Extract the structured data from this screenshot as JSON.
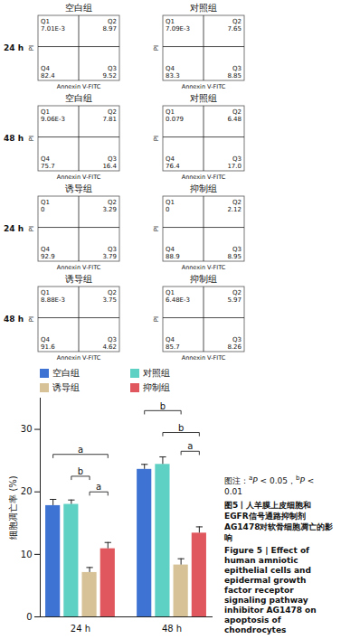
{
  "flow_cytometry": {
    "x_label": "Annexin V-FITC",
    "y_label": "PI",
    "rows": [
      {
        "label": "24 h",
        "panels": [
          {
            "title": "空白组",
            "quadrants": [
              {
                "name": "Q1",
                "value": "7.01E-3"
              },
              {
                "name": "Q2",
                "value": "8.97"
              },
              {
                "name": "Q3",
                "value": "9.52"
              },
              {
                "name": "Q4",
                "value": "82.4"
              }
            ]
          },
          {
            "title": "对照组",
            "quadrants": [
              {
                "name": "Q1",
                "value": "7.09E-3"
              },
              {
                "name": "Q2",
                "value": "7.65"
              },
              {
                "name": "Q3",
                "value": "8.85"
              },
              {
                "name": "Q4",
                "value": "83.3"
              }
            ]
          }
        ]
      },
      {
        "label": "48 h",
        "panels": [
          {
            "title": "空白组",
            "quadrants": [
              {
                "name": "Q1",
                "value": "9.06E-3"
              },
              {
                "name": "Q2",
                "value": "7.81"
              },
              {
                "name": "Q3",
                "value": "16.4"
              },
              {
                "name": "Q4",
                "value": "75.7"
              }
            ]
          },
          {
            "title": "对照组",
            "quadrants": [
              {
                "name": "Q1",
                "value": "0.079"
              },
              {
                "name": "Q2",
                "value": "6.48"
              },
              {
                "name": "Q3",
                "value": "17.0"
              },
              {
                "name": "Q4",
                "value": "76.4"
              }
            ]
          }
        ]
      },
      {
        "label": "24 h",
        "panels": [
          {
            "title": "诱导组",
            "quadrants": [
              {
                "name": "Q1",
                "value": "0"
              },
              {
                "name": "Q2",
                "value": "3.29"
              },
              {
                "name": "Q3",
                "value": "3.79"
              },
              {
                "name": "Q4",
                "value": "92.9"
              }
            ]
          },
          {
            "title": "抑制组",
            "quadrants": [
              {
                "name": "Q1",
                "value": "0"
              },
              {
                "name": "Q2",
                "value": "2.12"
              },
              {
                "name": "Q3",
                "value": "8.95"
              },
              {
                "name": "Q4",
                "value": "88.9"
              }
            ]
          }
        ]
      },
      {
        "label": "48 h",
        "panels": [
          {
            "title": "诱导组",
            "quadrants": [
              {
                "name": "Q1",
                "value": "8.88E-3"
              },
              {
                "name": "Q2",
                "value": "3.75"
              },
              {
                "name": "Q3",
                "value": "4.62"
              },
              {
                "name": "Q4",
                "value": "91.6"
              }
            ]
          },
          {
            "title": "抑制组",
            "quadrants": [
              {
                "name": "Q1",
                "value": "6.48E-3"
              },
              {
                "name": "Q2",
                "value": "5.97"
              },
              {
                "name": "Q3",
                "value": "8.26"
              },
              {
                "name": "Q4",
                "value": "85.7"
              }
            ]
          }
        ]
      }
    ]
  },
  "chart_data": {
    "type": "bar",
    "categories": [
      "24 h",
      "48 h"
    ],
    "ylabel": "细胞凋亡率 (%)",
    "ylim": [
      0,
      35
    ],
    "yticks": [
      0,
      10,
      20,
      30
    ],
    "legend": "top",
    "series": [
      {
        "name": "空白组",
        "color": "#3f73d3",
        "values": [
          17.8,
          23.6
        ],
        "errors": [
          1.0,
          0.8
        ]
      },
      {
        "name": "对照组",
        "color": "#5fd0c4",
        "values": [
          18.0,
          24.4
        ],
        "errors": [
          0.7,
          1.2
        ]
      },
      {
        "name": "诱导组",
        "color": "#d6c296",
        "values": [
          7.1,
          8.3
        ],
        "errors": [
          0.8,
          1.0
        ]
      },
      {
        "name": "抑制组",
        "color": "#e0585e",
        "values": [
          10.9,
          13.4
        ],
        "errors": [
          1.0,
          1.0
        ]
      }
    ],
    "significance": [
      {
        "category": "24 h",
        "from": "空白组",
        "to": "抑制组",
        "level": 26,
        "label": "a"
      },
      {
        "category": "24 h",
        "from": "对照组",
        "to": "诱导组",
        "level": 22.5,
        "label": "b"
      },
      {
        "category": "24 h",
        "from": "诱导组",
        "to": "抑制组",
        "level": 20,
        "label": "a"
      },
      {
        "category": "48 h",
        "from": "空白组",
        "to": "诱导组",
        "level": 33,
        "label": "b"
      },
      {
        "category": "48 h",
        "from": "对照组",
        "to": "抑制组",
        "level": 29.5,
        "label": "b"
      },
      {
        "category": "48 h",
        "from": "诱导组",
        "to": "抑制组",
        "level": 26.5,
        "label": "a"
      }
    ]
  },
  "caption": {
    "note_prefix": "图注：",
    "note": [
      {
        "sup": "a",
        "italic": "P",
        "text": " < 0.05，"
      },
      {
        "sup": "b",
        "italic": "P",
        "text": " < 0.01"
      }
    ],
    "title_cn": "图5丨人羊膜上皮细胞和EGFR信号通路抑制剂AG1478对软骨细胞凋亡的影响",
    "title_en": "Figure 5 | Effect of human amniotic epithelial cells and epidermal growth factor receptor signaling pathway inhibitor AG1478 on apoptosis of chondrocytes"
  }
}
